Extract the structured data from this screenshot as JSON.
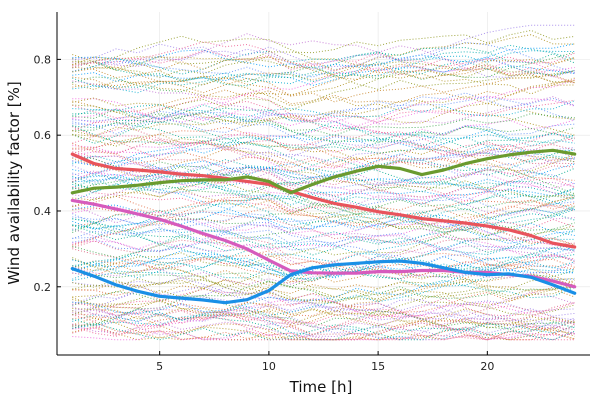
{
  "chart_data": {
    "type": "line",
    "title": "",
    "xlabel": "Time [h]",
    "ylabel": "Wind availability factor [%]",
    "xlim": [
      0.3,
      24.7
    ],
    "ylim": [
      0.02,
      0.925
    ],
    "x_ticks": [
      5,
      10,
      15,
      20
    ],
    "y_ticks": [
      0.2,
      0.4,
      0.6,
      0.8
    ],
    "grid": true,
    "legend": "none",
    "x": [
      1,
      2,
      3,
      4,
      5,
      6,
      7,
      8,
      9,
      10,
      11,
      12,
      13,
      14,
      15,
      16,
      17,
      18,
      19,
      20,
      21,
      22,
      23,
      24
    ],
    "highlighted_series": [
      {
        "color": "#e8545c",
        "values": [
          0.55,
          0.525,
          0.512,
          0.508,
          0.503,
          0.497,
          0.493,
          0.486,
          0.478,
          0.47,
          0.452,
          0.435,
          0.42,
          0.41,
          0.398,
          0.39,
          0.38,
          0.374,
          0.368,
          0.36,
          0.35,
          0.335,
          0.315,
          0.305
        ]
      },
      {
        "color": "#6a9a2e",
        "values": [
          0.448,
          0.46,
          0.463,
          0.468,
          0.475,
          0.48,
          0.482,
          0.482,
          0.49,
          0.478,
          0.448,
          0.47,
          0.49,
          0.505,
          0.518,
          0.512,
          0.496,
          0.508,
          0.525,
          0.538,
          0.548,
          0.555,
          0.56,
          0.55
        ]
      },
      {
        "color": "#d65bbd",
        "values": [
          0.428,
          0.418,
          0.405,
          0.392,
          0.378,
          0.36,
          0.34,
          0.322,
          0.3,
          0.27,
          0.242,
          0.237,
          0.236,
          0.236,
          0.24,
          0.24,
          0.243,
          0.243,
          0.238,
          0.238,
          0.232,
          0.227,
          0.215,
          0.2
        ]
      },
      {
        "color": "#1a8fe6",
        "values": [
          0.248,
          0.228,
          0.205,
          0.188,
          0.175,
          0.17,
          0.165,
          0.158,
          0.166,
          0.19,
          0.232,
          0.25,
          0.258,
          0.262,
          0.266,
          0.268,
          0.262,
          0.25,
          0.238,
          0.232,
          0.234,
          0.225,
          0.205,
          0.183
        ]
      }
    ],
    "background_series": {
      "count": 160,
      "style": "dotted",
      "value_range": [
        0.06,
        0.89
      ],
      "colors": [
        "#009af9",
        "#e26f46",
        "#3ea44e",
        "#c271d2",
        "#ac8e18",
        "#00aaae",
        "#ed5e93",
        "#c68225",
        "#00a98d",
        "#8e971e",
        "#00a9cd",
        "#9b7fe9",
        "#618df6",
        "#f061dd",
        "#dd6480"
      ]
    }
  }
}
